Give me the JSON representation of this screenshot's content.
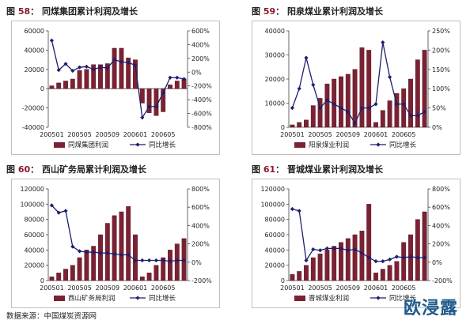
{
  "footer": "数据来源：中国煤炭资源网",
  "logo": "欧浸露",
  "colors": {
    "bar": "#7a2233",
    "bar_edge": "#5a1020",
    "line": "#1b1f6e",
    "title_num": "#8b1a2b"
  },
  "chart_data": [
    {
      "type": "bar+line",
      "title_prefix": "图",
      "figure_number": "58",
      "title": "同煤集团累计利润及增长",
      "categories": [
        "200501",
        "200502",
        "200503",
        "200504",
        "200505",
        "200506",
        "200507",
        "200508",
        "200509",
        "200510",
        "200511",
        "200512",
        "200601",
        "200602",
        "200603",
        "200604",
        "200605",
        "200606",
        "200607",
        "200608"
      ],
      "x_tick_labels": [
        "200501",
        "200505",
        "200509",
        "200601",
        "200605"
      ],
      "series": [
        {
          "name": "同煤集团利润",
          "axis": "left",
          "kind": "bar",
          "values": [
            3000,
            6000,
            8000,
            10000,
            19000,
            20000,
            25000,
            25000,
            26000,
            42000,
            42000,
            32000,
            30000,
            -15000,
            -25000,
            -28000,
            -24000,
            4000,
            8000,
            10000
          ]
        },
        {
          "name": "同比增长",
          "axis": "right",
          "kind": "line",
          "values": [
            460,
            30,
            120,
            20,
            70,
            80,
            40,
            70,
            60,
            180,
            150,
            140,
            100,
            -660,
            -500,
            -500,
            -300,
            -80,
            -80,
            -100
          ]
        }
      ],
      "left_axis": {
        "min": -40000,
        "max": 60000,
        "ticks": [
          60000,
          40000,
          20000,
          0,
          -20000,
          -40000
        ]
      },
      "right_axis": {
        "min": -800,
        "max": 600,
        "unit": "%",
        "ticks": [
          "600%",
          "400%",
          "200%",
          "0%",
          "-200%",
          "-400%",
          "-600%",
          "-800%"
        ]
      },
      "legend": [
        "同煤集团利润",
        "同比增长"
      ]
    },
    {
      "type": "bar+line",
      "title_prefix": "图",
      "figure_number": "59",
      "title": "阳泉煤业累计利润及增长",
      "categories": [
        "200501",
        "200502",
        "200503",
        "200504",
        "200505",
        "200506",
        "200507",
        "200508",
        "200509",
        "200510",
        "200511",
        "200512",
        "200601",
        "200602",
        "200603",
        "200604",
        "200605",
        "200606",
        "200607",
        "200608"
      ],
      "x_tick_labels": [
        "200501",
        "200505",
        "200509",
        "200601",
        "200605"
      ],
      "series": [
        {
          "name": "阳泉煤业利润",
          "axis": "left",
          "kind": "bar",
          "values": [
            1000,
            2000,
            3000,
            9000,
            12000,
            18000,
            20000,
            21000,
            22000,
            24000,
            33000,
            32000,
            2000,
            7000,
            11000,
            14000,
            16000,
            20000,
            28000,
            32000
          ]
        },
        {
          "name": "同比增长",
          "axis": "right",
          "kind": "line",
          "values": [
            50,
            100,
            180,
            110,
            50,
            70,
            60,
            50,
            40,
            10,
            50,
            50,
            60,
            220,
            130,
            60,
            60,
            30,
            30,
            40
          ]
        }
      ],
      "left_axis": {
        "min": 0,
        "max": 40000,
        "ticks": [
          40000,
          30000,
          20000,
          10000,
          0
        ]
      },
      "right_axis": {
        "min": 0,
        "max": 250,
        "unit": "%",
        "ticks": [
          "250%",
          "200%",
          "150%",
          "100%",
          "50%",
          "0%"
        ]
      },
      "legend": [
        "阳泉煤业利润",
        "同比增长"
      ]
    },
    {
      "type": "bar+line",
      "title_prefix": "图",
      "figure_number": "60",
      "title": "西山矿务局累计利润及增长",
      "categories": [
        "200501",
        "200502",
        "200503",
        "200504",
        "200505",
        "200506",
        "200507",
        "200508",
        "200509",
        "200510",
        "200511",
        "200512",
        "200601",
        "200602",
        "200603",
        "200604",
        "200605",
        "200606",
        "200607",
        "200608"
      ],
      "x_tick_labels": [
        "200501",
        "200505",
        "200509",
        "200601",
        "200605"
      ],
      "series": [
        {
          "name": "西山矿务局利润",
          "axis": "left",
          "kind": "bar",
          "values": [
            5000,
            10000,
            15000,
            20000,
            30000,
            40000,
            45000,
            60000,
            75000,
            85000,
            90000,
            97000,
            60000,
            5000,
            10000,
            20000,
            30000,
            40000,
            48000,
            55000
          ]
        },
        {
          "name": "同比增长",
          "axis": "right",
          "kind": "line",
          "values": [
            620,
            540,
            560,
            170,
            120,
            110,
            110,
            100,
            100,
            90,
            80,
            80,
            20,
            20,
            20,
            20,
            20,
            10,
            20,
            20
          ]
        }
      ],
      "left_axis": {
        "min": 0,
        "max": 120000,
        "ticks": [
          120000,
          100000,
          80000,
          60000,
          40000,
          20000,
          0
        ]
      },
      "right_axis": {
        "min": -200,
        "max": 800,
        "unit": "%",
        "ticks": [
          "800%",
          "600%",
          "400%",
          "200%",
          "0%",
          "-200%"
        ]
      },
      "legend": [
        "西山矿务局利润",
        "同比增长"
      ]
    },
    {
      "type": "bar+line",
      "title_prefix": "图",
      "figure_number": "61",
      "title": "晋城煤业累计利润及增长",
      "categories": [
        "200501",
        "200502",
        "200503",
        "200504",
        "200505",
        "200506",
        "200507",
        "200508",
        "200509",
        "200510",
        "200511",
        "200512",
        "200601",
        "200602",
        "200603",
        "200604",
        "200605",
        "200606",
        "200607",
        "200608"
      ],
      "x_tick_labels": [
        "200501",
        "200505",
        "200509",
        "200601",
        "200605"
      ],
      "series": [
        {
          "name": "晋城煤业利润",
          "axis": "left",
          "kind": "bar",
          "values": [
            8000,
            12000,
            20000,
            30000,
            35000,
            40000,
            45000,
            50000,
            55000,
            60000,
            65000,
            100000,
            10000,
            15000,
            20000,
            25000,
            50000,
            60000,
            80000,
            90000
          ]
        },
        {
          "name": "同比增长",
          "axis": "right",
          "kind": "line",
          "values": [
            580,
            560,
            20,
            140,
            130,
            150,
            150,
            150,
            130,
            140,
            100,
            50,
            10,
            10,
            30,
            60,
            50,
            60,
            50,
            50
          ]
        }
      ],
      "left_axis": {
        "min": 0,
        "max": 120000,
        "ticks": [
          120000,
          100000,
          80000,
          60000,
          40000,
          20000,
          0
        ]
      },
      "right_axis": {
        "min": -200,
        "max": 800,
        "unit": "%",
        "ticks": [
          "800%",
          "600%",
          "400%",
          "200%",
          "0%",
          "-200%"
        ]
      },
      "legend": [
        "晋城煤业利润",
        "同比增长"
      ]
    }
  ]
}
